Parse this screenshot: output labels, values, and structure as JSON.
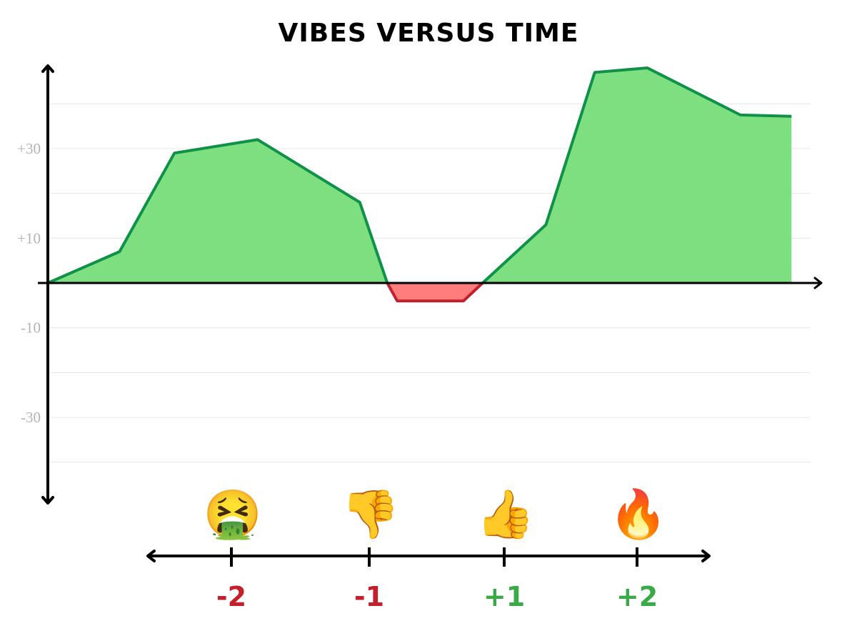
{
  "chart_data": {
    "type": "area",
    "title": "VIBES VERSUS TIME",
    "xlabel": "",
    "ylabel": "",
    "ylim": [
      -40,
      48
    ],
    "y_ticks": [
      {
        "value": 30,
        "label": "+30"
      },
      {
        "value": 10,
        "label": "+10"
      },
      {
        "value": -10,
        "label": "-10"
      },
      {
        "value": -30,
        "label": "-30"
      }
    ],
    "grid_values": [
      40,
      30,
      20,
      10,
      -10,
      -20,
      -30,
      -40
    ],
    "grid": true,
    "series": [
      {
        "points": [
          [
            0,
            0
          ],
          [
            9.4,
            7
          ],
          [
            16.6,
            29
          ],
          [
            27.5,
            32
          ],
          [
            40.9,
            18
          ],
          [
            44.5,
            0
          ],
          [
            45.8,
            -4
          ],
          [
            54.5,
            -4
          ],
          [
            57,
            0
          ],
          [
            65.3,
            13
          ],
          [
            71.7,
            47
          ],
          [
            78.6,
            48
          ],
          [
            90.8,
            37.5
          ],
          [
            97.5,
            37.2
          ]
        ],
        "positive_fill": "#7ddf80",
        "positive_stroke": "#0f9148",
        "negative_fill": "#ff7d7d",
        "negative_stroke": "#c4202c"
      }
    ],
    "legend_scale": [
      {
        "emoji": "🤮",
        "label": "-2",
        "color": "#c4202c",
        "icon": "vomiting-face-icon"
      },
      {
        "emoji": "👎",
        "label": "-1",
        "color": "#c4202c",
        "icon": "thumbs-down-icon"
      },
      {
        "emoji": "👍",
        "label": "+1",
        "color": "#3aaa48",
        "icon": "thumbs-up-icon"
      },
      {
        "emoji": "🔥",
        "label": "+2",
        "color": "#3aaa48",
        "icon": "fire-icon"
      }
    ]
  }
}
